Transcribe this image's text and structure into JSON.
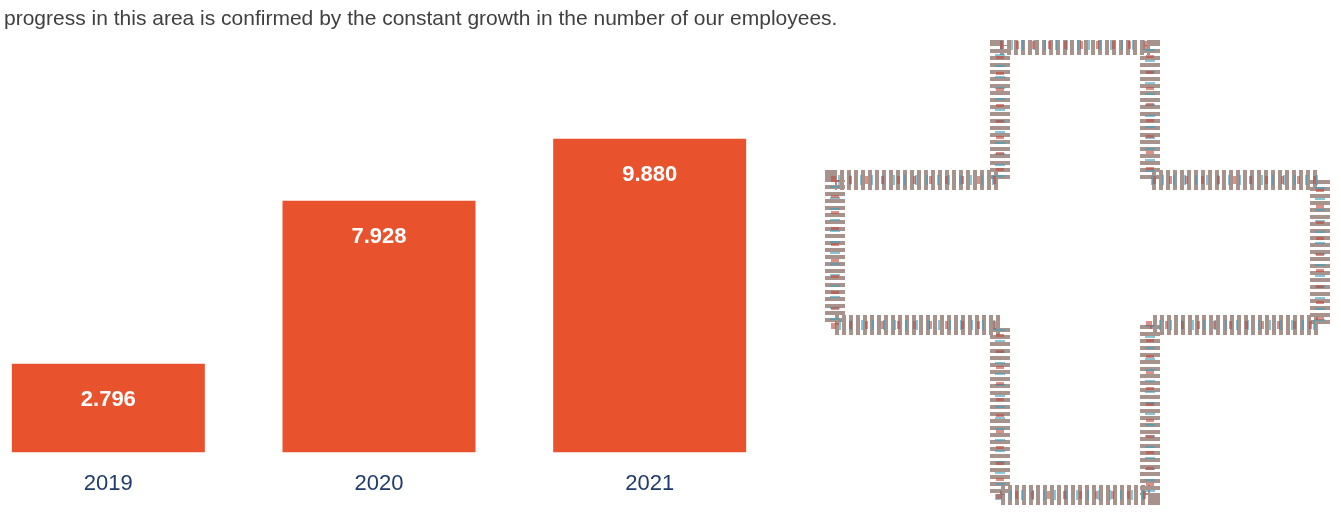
{
  "chart_data": {
    "type": "bar",
    "title": "progress in this area is confirmed by the constant growth in the number of our employees.",
    "categories": [
      "2019",
      "2020",
      "2021"
    ],
    "values": [
      2796,
      7928,
      9880
    ],
    "value_labels": [
      "2.796",
      "7.928",
      "9.880"
    ],
    "color": "#e8522d",
    "ylim": [
      0,
      10000
    ],
    "grid": false,
    "data_labels": true,
    "tick_labels": "x"
  }
}
